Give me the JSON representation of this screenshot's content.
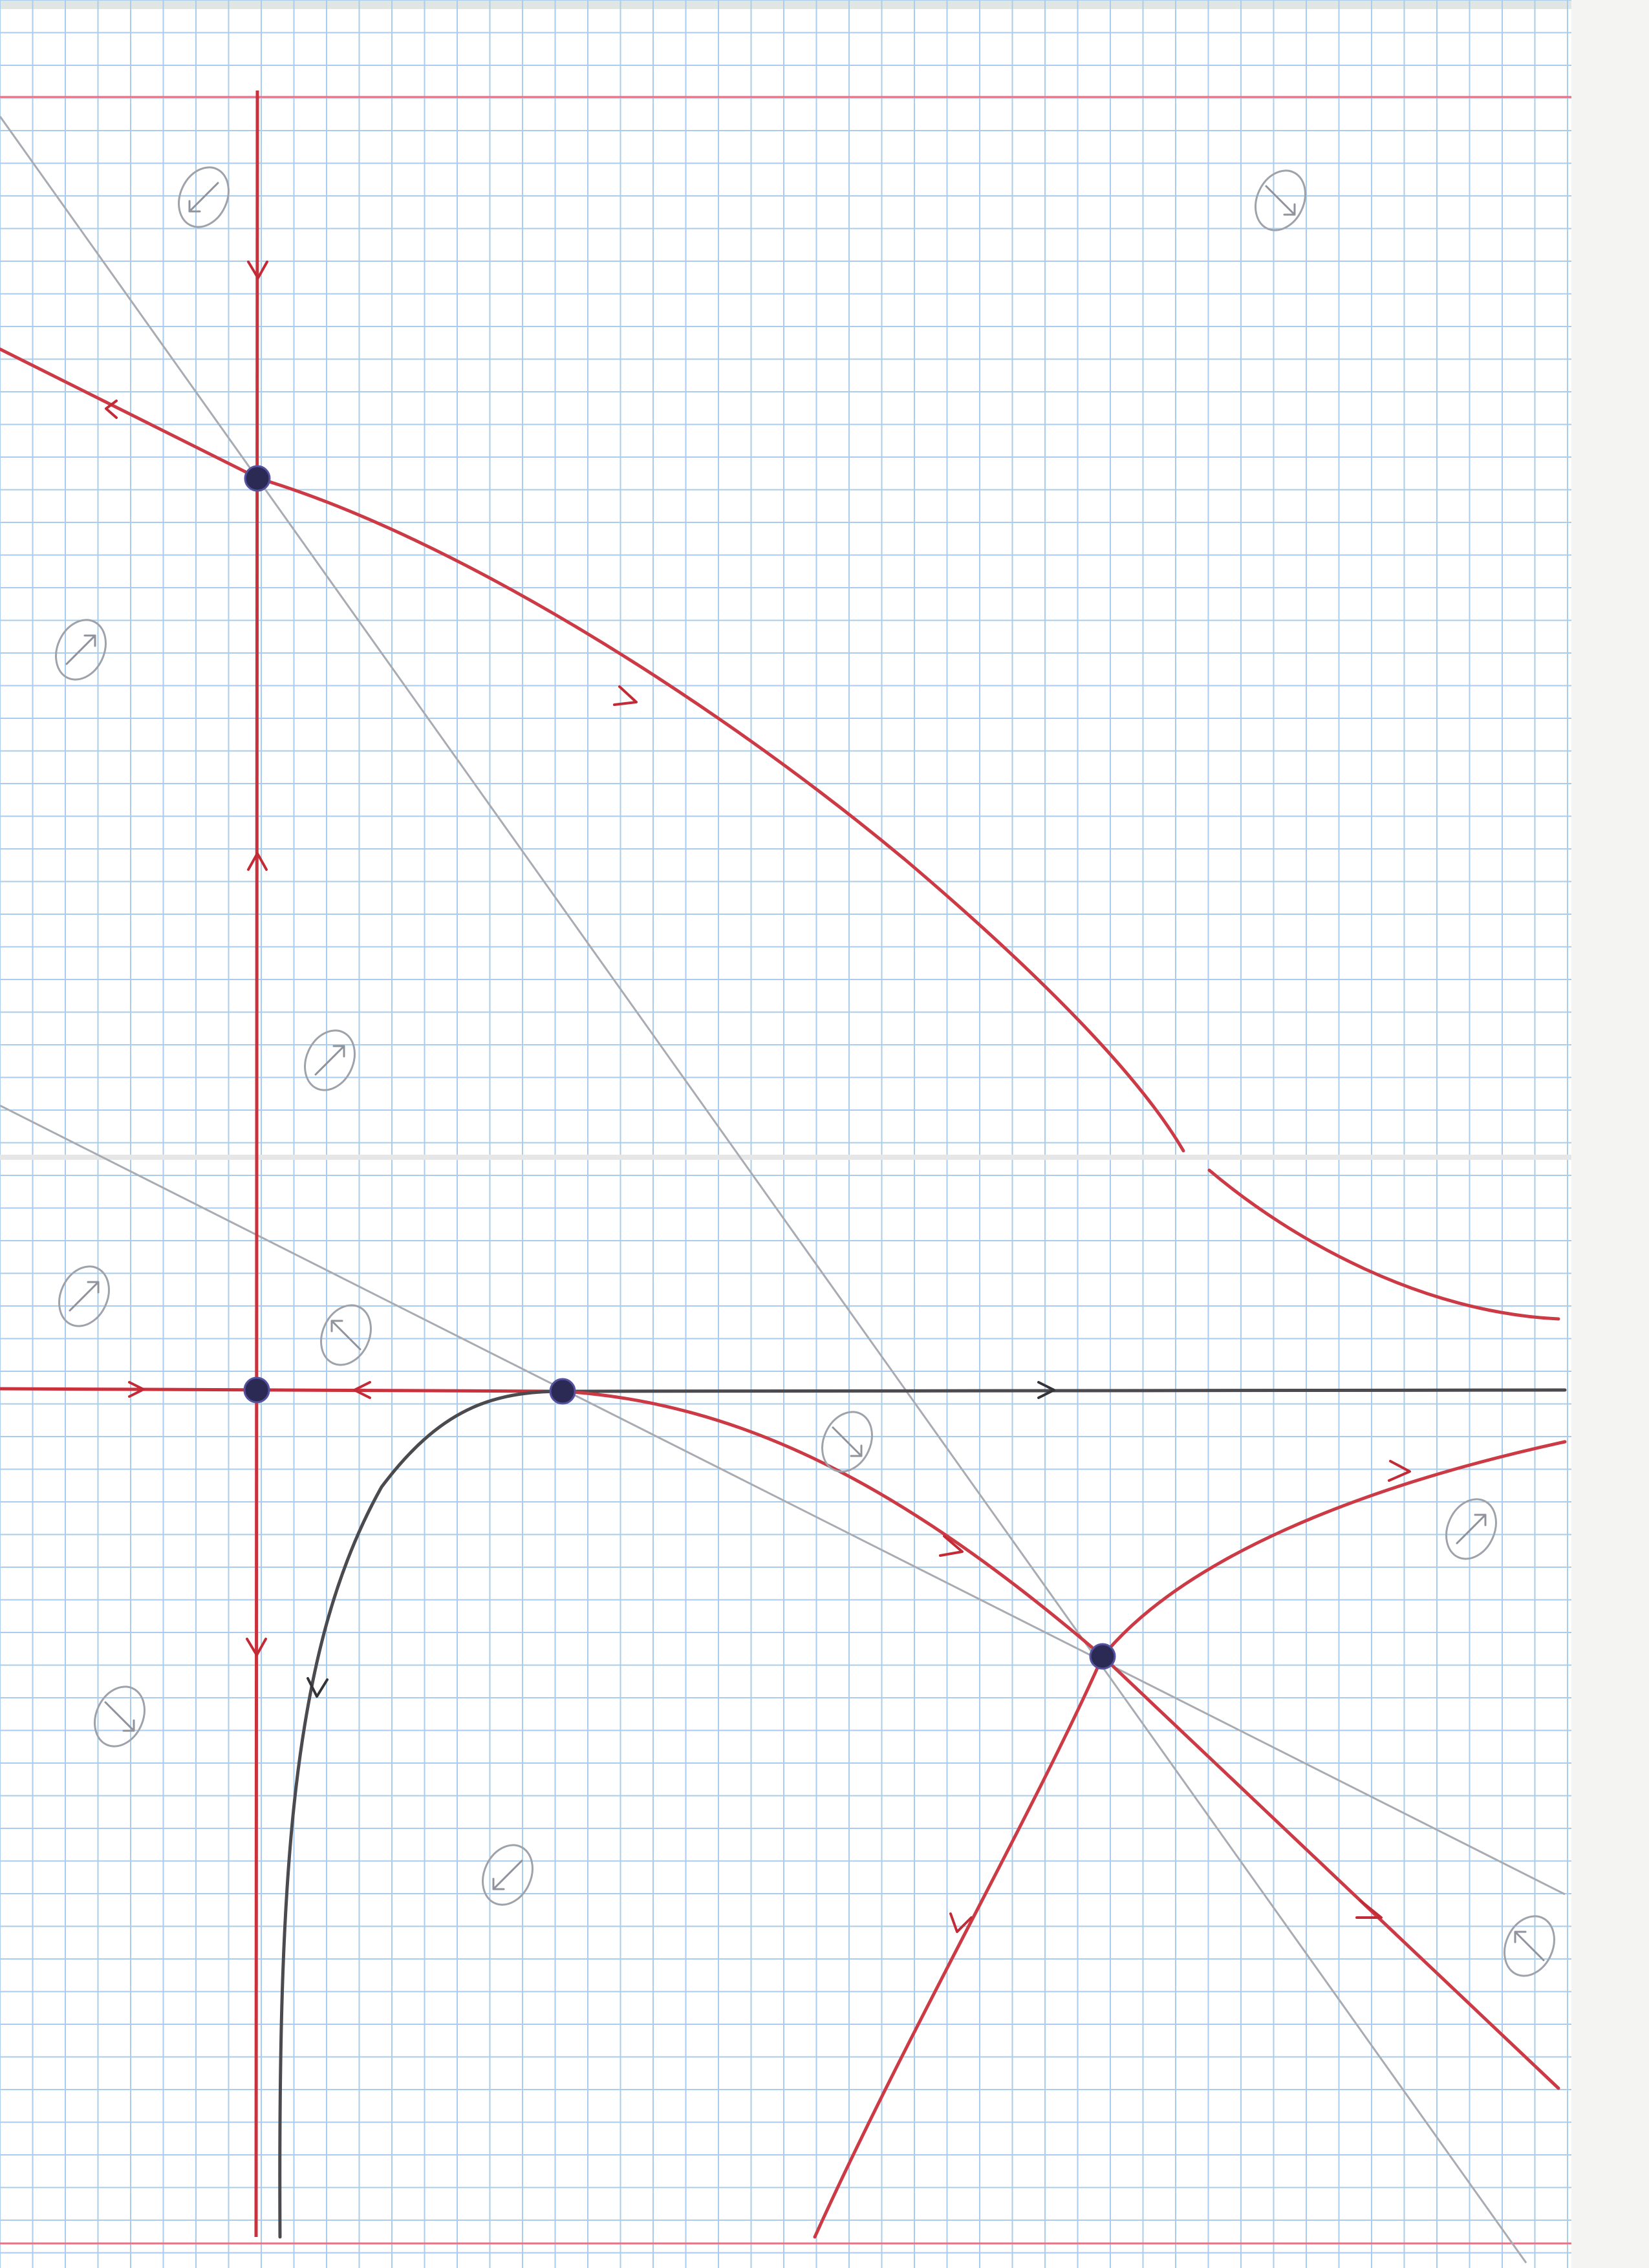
{
  "figure": {
    "kind": "hand-drawn phase portrait on graph paper",
    "colors": {
      "paper": "#ffffff",
      "grid": "#a9cdea",
      "margin": "#ee6f86",
      "orbit": "#cc3a45",
      "separatrix_dark": "#4a4a4f",
      "guide": "#a8acb2",
      "fixed_point": "#2b2a55"
    },
    "icons": [
      "direction-badge-icon",
      "arrowhead-icon",
      "fixed-point-dot-icon"
    ]
  },
  "fixed_points": [
    {
      "name": "fixed-point-upper-left",
      "x": 0,
      "y": 14
    },
    {
      "name": "fixed-point-origin",
      "x": 0,
      "y": 0
    },
    {
      "name": "fixed-point-on-axis",
      "x": 5,
      "y": 0
    },
    {
      "name": "fixed-point-saddle",
      "x": 13,
      "y": -8
    }
  ],
  "direction_badges": [
    {
      "name": "badge-1",
      "dir": "down-left"
    },
    {
      "name": "badge-2",
      "dir": "down-right"
    },
    {
      "name": "badge-3",
      "dir": "up-right"
    },
    {
      "name": "badge-4",
      "dir": "up-right"
    },
    {
      "name": "badge-5",
      "dir": "up-right"
    },
    {
      "name": "badge-6",
      "dir": "up-left"
    },
    {
      "name": "badge-7",
      "dir": "down-right"
    },
    {
      "name": "badge-8",
      "dir": "down-right"
    },
    {
      "name": "badge-9",
      "dir": "up-right"
    },
    {
      "name": "badge-10",
      "dir": "down-left"
    },
    {
      "name": "badge-11",
      "dir": "up-left"
    }
  ]
}
